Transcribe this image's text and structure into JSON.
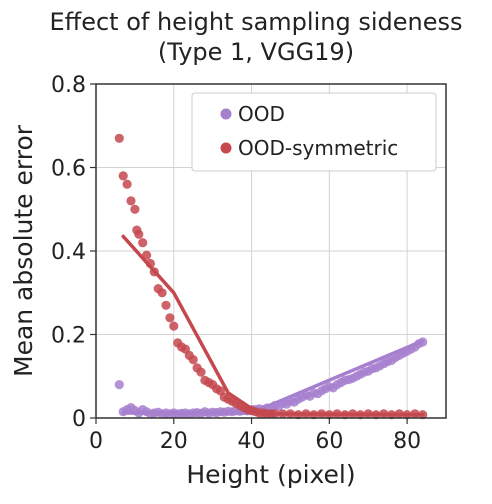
{
  "chart_data": {
    "type": "scatter",
    "title_line1": "Effect of height sampling sideness",
    "title_line2": "(Type 1, VGG19)",
    "xlabel": "Height (pixel)",
    "ylabel": "Mean absolute error",
    "xlim": [
      0,
      90
    ],
    "ylim": [
      0,
      0.8
    ],
    "xticks": [
      0,
      20,
      40,
      60,
      80
    ],
    "yticks": [
      0,
      0.2,
      0.4,
      0.6,
      0.8
    ],
    "xtick_labels": [
      "0",
      "20",
      "40",
      "60",
      "80"
    ],
    "ytick_labels": [
      "0",
      "0.2",
      "0.4",
      "0.6",
      "0.8"
    ],
    "grid": true,
    "legend_position": "top-right",
    "series": [
      {
        "name": "OOD",
        "color": "#a77fcf",
        "points": [
          [
            6,
            0.08
          ],
          [
            7,
            0.015
          ],
          [
            8,
            0.02
          ],
          [
            9,
            0.025
          ],
          [
            10,
            0.018
          ],
          [
            11,
            0.012
          ],
          [
            12,
            0.02
          ],
          [
            13,
            0.015
          ],
          [
            14,
            0.01
          ],
          [
            15,
            0.012
          ],
          [
            16,
            0.014
          ],
          [
            17,
            0.01
          ],
          [
            18,
            0.012
          ],
          [
            19,
            0.01
          ],
          [
            20,
            0.012
          ],
          [
            21,
            0.01
          ],
          [
            22,
            0.011
          ],
          [
            23,
            0.012
          ],
          [
            24,
            0.01
          ],
          [
            25,
            0.012
          ],
          [
            26,
            0.013
          ],
          [
            27,
            0.011
          ],
          [
            28,
            0.015
          ],
          [
            29,
            0.012
          ],
          [
            30,
            0.014
          ],
          [
            31,
            0.013
          ],
          [
            32,
            0.015
          ],
          [
            33,
            0.014
          ],
          [
            34,
            0.016
          ],
          [
            35,
            0.015
          ],
          [
            36,
            0.017
          ],
          [
            37,
            0.016
          ],
          [
            38,
            0.018
          ],
          [
            39,
            0.017
          ],
          [
            40,
            0.02
          ],
          [
            41,
            0.02
          ],
          [
            42,
            0.022
          ],
          [
            43,
            0.02
          ],
          [
            44,
            0.024
          ],
          [
            45,
            0.022
          ],
          [
            46,
            0.03
          ],
          [
            47,
            0.028
          ],
          [
            48,
            0.035
          ],
          [
            49,
            0.033
          ],
          [
            50,
            0.04
          ],
          [
            51,
            0.038
          ],
          [
            52,
            0.045
          ],
          [
            53,
            0.05
          ],
          [
            54,
            0.055
          ],
          [
            55,
            0.052
          ],
          [
            56,
            0.06
          ],
          [
            57,
            0.058
          ],
          [
            58,
            0.065
          ],
          [
            59,
            0.07
          ],
          [
            60,
            0.075
          ],
          [
            61,
            0.072
          ],
          [
            62,
            0.08
          ],
          [
            63,
            0.085
          ],
          [
            64,
            0.09
          ],
          [
            65,
            0.092
          ],
          [
            66,
            0.095
          ],
          [
            67,
            0.1
          ],
          [
            68,
            0.105
          ],
          [
            69,
            0.11
          ],
          [
            70,
            0.112
          ],
          [
            71,
            0.118
          ],
          [
            72,
            0.12
          ],
          [
            73,
            0.125
          ],
          [
            74,
            0.13
          ],
          [
            75,
            0.135
          ],
          [
            76,
            0.138
          ],
          [
            77,
            0.145
          ],
          [
            78,
            0.15
          ],
          [
            79,
            0.155
          ],
          [
            80,
            0.16
          ],
          [
            81,
            0.165
          ],
          [
            82,
            0.17
          ],
          [
            83,
            0.178
          ],
          [
            84,
            0.182
          ]
        ],
        "trend": [
          [
            7,
            0.012
          ],
          [
            40,
            0.012
          ],
          [
            84,
            0.185
          ]
        ]
      },
      {
        "name": "OOD-symmetric",
        "color": "#c4484e",
        "points": [
          [
            6,
            0.67
          ],
          [
            7,
            0.58
          ],
          [
            8,
            0.56
          ],
          [
            9,
            0.52
          ],
          [
            10,
            0.5
          ],
          [
            10.5,
            0.45
          ],
          [
            11,
            0.44
          ],
          [
            12,
            0.42
          ],
          [
            13,
            0.39
          ],
          [
            14,
            0.37
          ],
          [
            15,
            0.35
          ],
          [
            16,
            0.31
          ],
          [
            17,
            0.3
          ],
          [
            18,
            0.27
          ],
          [
            19,
            0.24
          ],
          [
            20,
            0.22
          ],
          [
            21,
            0.18
          ],
          [
            22,
            0.17
          ],
          [
            23,
            0.165
          ],
          [
            24,
            0.15
          ],
          [
            25,
            0.14
          ],
          [
            26,
            0.12
          ],
          [
            27,
            0.11
          ],
          [
            28,
            0.09
          ],
          [
            29,
            0.085
          ],
          [
            30,
            0.08
          ],
          [
            31,
            0.07
          ],
          [
            32,
            0.065
          ],
          [
            33,
            0.05
          ],
          [
            34,
            0.045
          ],
          [
            35,
            0.04
          ],
          [
            36,
            0.035
          ],
          [
            37,
            0.03
          ],
          [
            38,
            0.025
          ],
          [
            39,
            0.02
          ],
          [
            40,
            0.018
          ],
          [
            41,
            0.015
          ],
          [
            42,
            0.012
          ],
          [
            43,
            0.012
          ],
          [
            44,
            0.01
          ],
          [
            45,
            0.01
          ],
          [
            46,
            0.01
          ],
          [
            48,
            0.01
          ],
          [
            50,
            0.01
          ],
          [
            52,
            0.008
          ],
          [
            54,
            0.01
          ],
          [
            56,
            0.008
          ],
          [
            58,
            0.01
          ],
          [
            60,
            0.008
          ],
          [
            62,
            0.01
          ],
          [
            64,
            0.008
          ],
          [
            66,
            0.01
          ],
          [
            68,
            0.008
          ],
          [
            70,
            0.01
          ],
          [
            72,
            0.008
          ],
          [
            74,
            0.01
          ],
          [
            76,
            0.008
          ],
          [
            78,
            0.01
          ],
          [
            80,
            0.008
          ],
          [
            82,
            0.01
          ],
          [
            84,
            0.008
          ]
        ],
        "trend": [
          [
            7,
            0.435
          ],
          [
            20,
            0.3
          ],
          [
            34,
            0.06
          ],
          [
            42,
            0.01
          ],
          [
            84,
            0.008
          ]
        ]
      }
    ]
  }
}
